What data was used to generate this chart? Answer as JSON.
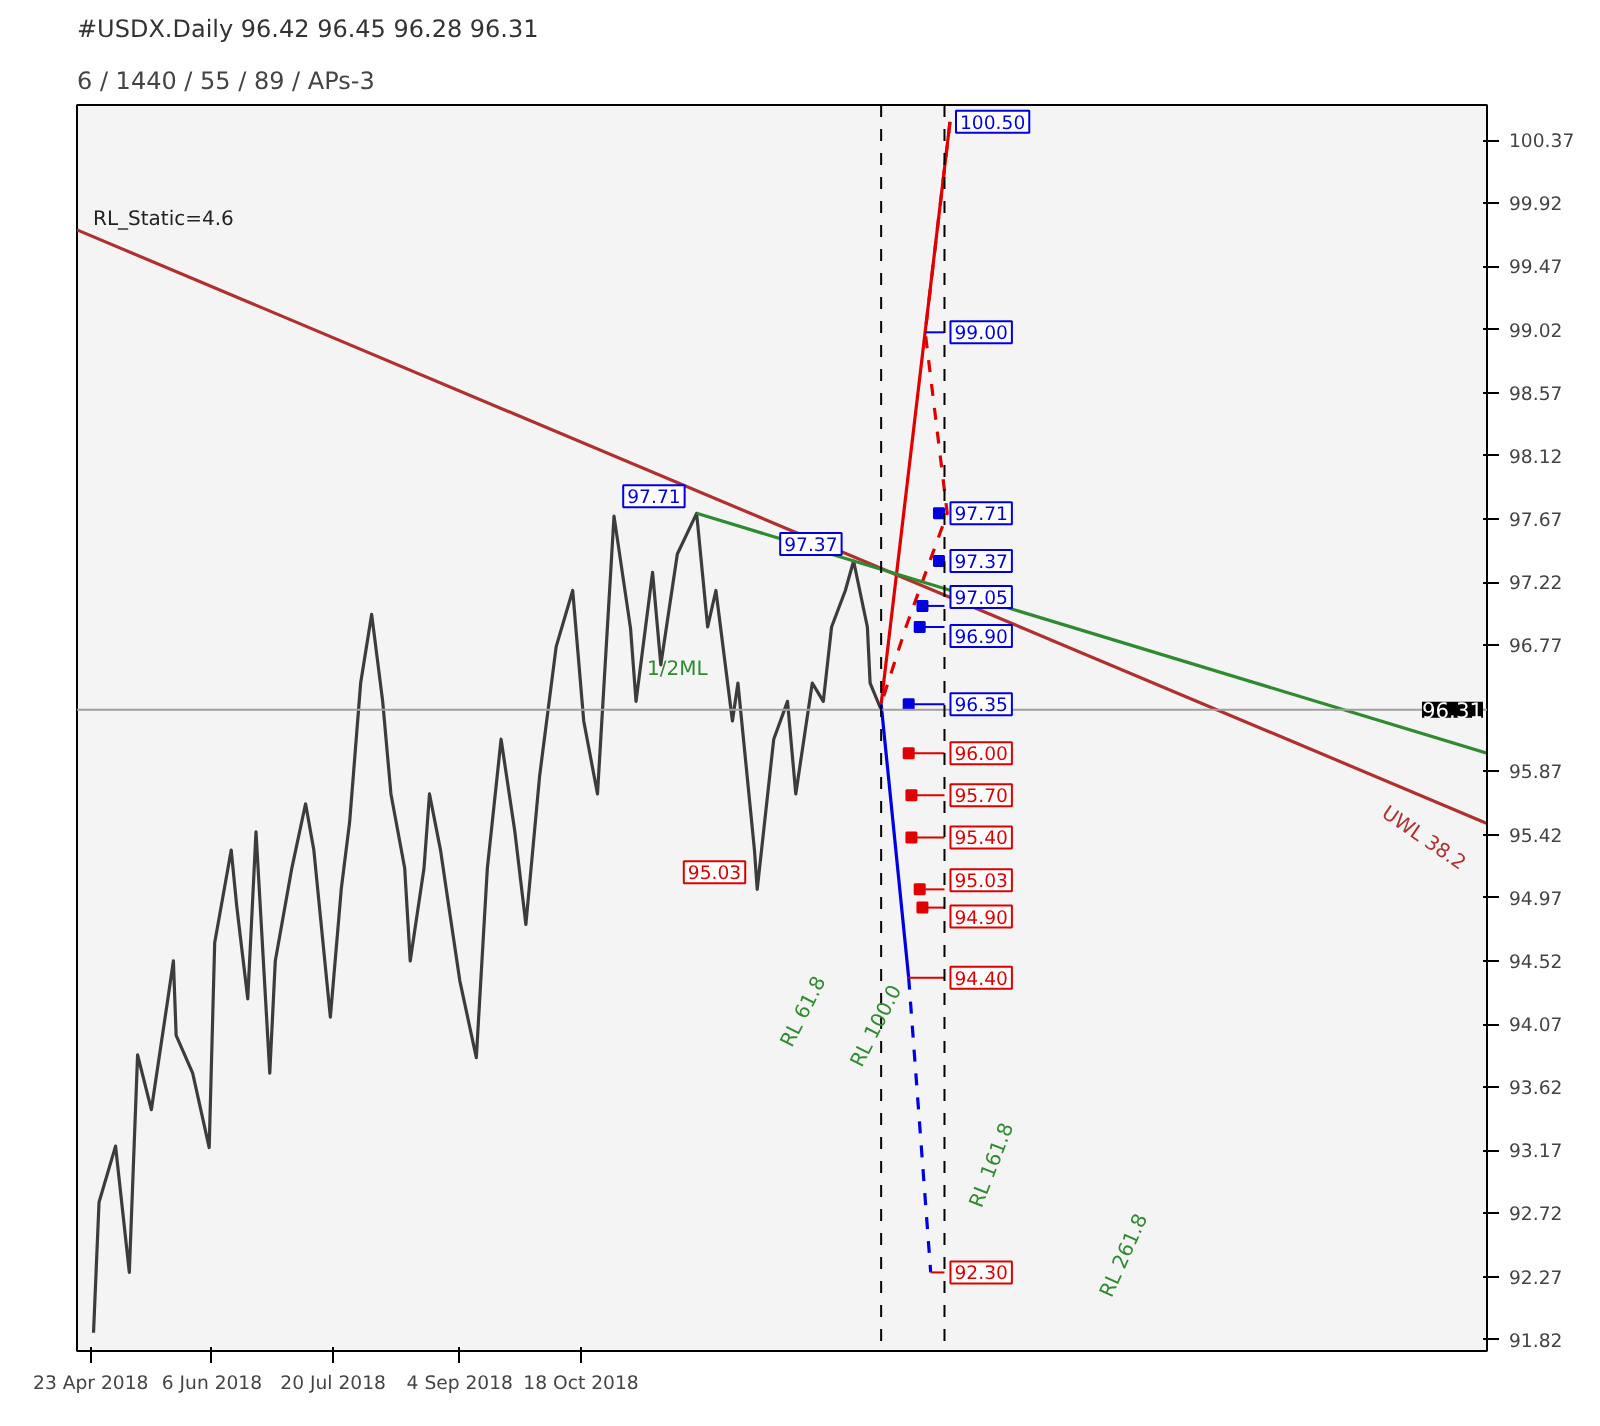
{
  "chart_data": {
    "type": "line",
    "title": "#USDX.Daily  96.42 96.45 96.28 96.31",
    "subtitle": "6 / 1440 / 55 / 89 / APs-3",
    "xlim": [
      "2018-04-18",
      "2019-09-12"
    ],
    "ylim": [
      91.74,
      100.62
    ],
    "xticks": [
      {
        "value": "2018-04-23",
        "label": "23 Apr 2018"
      },
      {
        "value": "2018-06-06",
        "label": "6 Jun 2018"
      },
      {
        "value": "2018-07-20",
        "label": "20 Jul 2018"
      },
      {
        "value": "2018-09-04",
        "label": "4 Sep 2018"
      },
      {
        "value": "2018-10-18",
        "label": "18 Oct 2018"
      }
    ],
    "yticks": [
      91.82,
      92.27,
      92.72,
      93.17,
      93.62,
      94.07,
      94.52,
      94.97,
      95.42,
      95.87,
      96.77,
      97.22,
      97.67,
      98.12,
      98.57,
      99.02,
      99.47,
      99.92,
      100.37
    ],
    "grid": false,
    "marker": "none",
    "series": [
      {
        "color": "#3c3c3c",
        "line_style": "solid",
        "x": [
          "2018-04-24",
          "2018-04-26",
          "2018-05-02",
          "2018-05-07",
          "2018-05-10",
          "2018-05-15",
          "2018-05-21",
          "2018-05-23",
          "2018-05-24",
          "2018-05-30",
          "2018-06-05",
          "2018-06-07",
          "2018-06-13",
          "2018-06-15",
          "2018-06-19",
          "2018-06-22",
          "2018-06-27",
          "2018-06-29",
          "2018-07-05",
          "2018-07-10",
          "2018-07-13",
          "2018-07-19",
          "2018-07-23",
          "2018-07-26",
          "2018-07-30",
          "2018-08-03",
          "2018-08-07",
          "2018-08-10",
          "2018-08-15",
          "2018-08-17",
          "2018-08-22",
          "2018-08-24",
          "2018-08-28",
          "2018-08-31",
          "2018-09-04",
          "2018-09-10",
          "2018-09-14",
          "2018-09-19",
          "2018-09-24",
          "2018-09-28",
          "2018-10-03",
          "2018-10-09",
          "2018-10-15",
          "2018-10-19",
          "2018-10-24",
          "2018-10-30",
          "2018-11-05",
          "2018-11-07",
          "2018-11-13",
          "2018-11-16",
          "2018-11-22",
          "2018-11-29",
          "2018-12-03",
          "2018-12-06",
          "2018-12-12",
          "2018-12-14",
          "2018-12-20",
          "2018-12-21",
          "2018-12-27",
          "2019-01-01",
          "2019-01-04",
          "2019-01-10",
          "2019-01-14",
          "2019-01-17",
          "2019-01-22",
          "2019-01-25",
          "2019-01-30",
          "2019-01-31",
          "2019-02-04"
        ],
        "values": [
          91.87,
          92.8,
          93.2,
          92.3,
          93.85,
          93.46,
          94.25,
          94.52,
          93.99,
          93.72,
          93.19,
          94.65,
          95.31,
          94.91,
          94.25,
          95.44,
          93.72,
          94.52,
          95.18,
          95.64,
          95.31,
          94.12,
          95.04,
          95.51,
          96.5,
          96.99,
          96.37,
          95.71,
          95.18,
          94.52,
          95.18,
          95.71,
          95.31,
          94.91,
          94.38,
          93.83,
          95.18,
          96.1,
          95.44,
          94.78,
          95.84,
          96.76,
          97.16,
          96.23,
          95.71,
          97.69,
          96.89,
          96.37,
          97.29,
          96.63,
          97.42,
          97.71,
          96.9,
          97.16,
          96.23,
          96.5,
          95.31,
          95.03,
          96.1,
          96.37,
          95.71,
          96.5,
          96.37,
          96.9,
          97.16,
          97.37,
          96.9,
          96.5,
          96.31
        ]
      },
      {
        "color": "#e00000",
        "line_style": "solid",
        "x": [
          "2019-02-04",
          "2019-03-01"
        ],
        "values": [
          96.35,
          100.5
        ]
      },
      {
        "color": "#e00000",
        "line_style": "dashed",
        "x": [
          "2019-03-01",
          "2019-02-20",
          "2019-02-28",
          "2019-02-13",
          "2019-02-04"
        ],
        "values": [
          100.5,
          99.0,
          97.71,
          96.9,
          96.35
        ]
      },
      {
        "color": "#0000e0",
        "line_style": "solid",
        "x": [
          "2019-02-04",
          "2019-02-14"
        ],
        "values": [
          96.35,
          94.4
        ]
      },
      {
        "color": "#0000e0",
        "line_style": "dashed",
        "x": [
          "2019-02-14",
          "2019-02-22"
        ],
        "values": [
          94.4,
          92.3
        ]
      },
      {
        "color": "#b03030",
        "line_style": "solid",
        "x": [
          "2018-04-18",
          "2019-09-12"
        ],
        "values": [
          99.73,
          95.5
        ]
      },
      {
        "color": "#2e8b2e",
        "line_style": "solid",
        "x": [
          "2018-11-29",
          "2019-09-12"
        ],
        "values": [
          97.71,
          96.0
        ]
      },
      {
        "type": "scatter",
        "marker": "square",
        "color": "#0000e0",
        "x": [
          "2019-02-25",
          "2019-02-25",
          "2019-02-19",
          "2019-02-18",
          "2019-02-14"
        ],
        "values": [
          97.71,
          97.37,
          97.05,
          96.9,
          96.35
        ]
      },
      {
        "type": "scatter",
        "marker": "square",
        "color": "#e00000",
        "x": [
          "2019-02-14",
          "2019-02-15",
          "2019-02-15",
          "2019-02-18",
          "2019-02-19"
        ],
        "values": [
          96.0,
          95.7,
          95.4,
          95.03,
          94.9
        ]
      }
    ],
    "ref_lines": [
      {
        "axis": "y",
        "value": 96.31,
        "label": "96.31",
        "color": "#a0a0a0",
        "line_style": "solid"
      },
      {
        "axis": "x",
        "value": "2019-02-04",
        "color": "#000000",
        "line_style": "dashed"
      },
      {
        "axis": "x",
        "value": "2019-02-27",
        "color": "#000000",
        "line_style": "dashed"
      }
    ],
    "annotations": [
      "RL_Static=4.6",
      "1/2ML",
      "UWL 38.2",
      "RL 61.8",
      "RL 100.0",
      "RL 161.8",
      "RL 261.8",
      {
        "text": "97.71",
        "x": "2018-11-29",
        "y": 97.71
      },
      {
        "text": "97.37",
        "x": "2019-01-25",
        "y": 97.37
      },
      {
        "text": "95.03",
        "x": "2018-12-21",
        "y": 95.03
      },
      {
        "text": "100.50",
        "x": "2019-03-01",
        "y": 100.5
      },
      {
        "text": "99.00",
        "x": "2019-02-20",
        "y": 99.0
      },
      {
        "text": "97.71",
        "x": "2019-02-25",
        "y": 97.71
      },
      {
        "text": "97.37",
        "x": "2019-02-25",
        "y": 97.37
      },
      {
        "text": "97.05",
        "x": "2019-02-19",
        "y": 97.05
      },
      {
        "text": "96.90",
        "x": "2019-02-18",
        "y": 96.9
      },
      {
        "text": "96.35",
        "x": "2019-02-14",
        "y": 96.35
      },
      {
        "text": "96.00",
        "x": "2019-02-14",
        "y": 96.0
      },
      {
        "text": "95.70",
        "x": "2019-02-15",
        "y": 95.7
      },
      {
        "text": "95.40",
        "x": "2019-02-15",
        "y": 95.4
      },
      {
        "text": "95.03",
        "x": "2019-02-18",
        "y": 95.03
      },
      {
        "text": "94.90",
        "x": "2019-02-19",
        "y": 94.9
      },
      {
        "text": "94.40",
        "x": "2019-02-14",
        "y": 94.4
      },
      {
        "text": "92.30",
        "x": "2019-02-22",
        "y": 92.3
      }
    ]
  }
}
